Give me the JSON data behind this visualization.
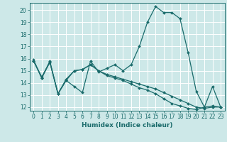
{
  "title": "",
  "xlabel": "Humidex (Indice chaleur)",
  "background_color": "#cde8e8",
  "grid_color": "#ffffff",
  "line_color": "#1a6b6b",
  "xlim": [
    -0.5,
    23.5
  ],
  "ylim": [
    11.7,
    20.6
  ],
  "yticks": [
    12,
    13,
    14,
    15,
    16,
    17,
    18,
    19,
    20
  ],
  "xticks": [
    0,
    1,
    2,
    3,
    4,
    5,
    6,
    7,
    8,
    9,
    10,
    11,
    12,
    13,
    14,
    15,
    16,
    17,
    18,
    19,
    20,
    21,
    22,
    23
  ],
  "series1": [
    15.9,
    14.4,
    15.8,
    13.1,
    14.2,
    13.7,
    13.2,
    15.8,
    14.9,
    15.2,
    15.5,
    15.0,
    15.5,
    17.0,
    19.0,
    20.3,
    19.8,
    19.8,
    19.3,
    16.5,
    13.3,
    12.0,
    13.7,
    12.0
  ],
  "series2": [
    15.8,
    14.5,
    15.7,
    13.1,
    14.3,
    15.0,
    15.1,
    15.5,
    15.0,
    14.7,
    14.5,
    14.3,
    14.1,
    13.9,
    13.7,
    13.5,
    13.2,
    12.9,
    12.6,
    12.3,
    12.0,
    11.9,
    12.0,
    12.0
  ],
  "series3": [
    15.8,
    14.4,
    15.7,
    13.1,
    14.2,
    15.0,
    15.1,
    15.5,
    15.0,
    14.6,
    14.4,
    14.2,
    13.9,
    13.6,
    13.4,
    13.1,
    12.7,
    12.3,
    12.1,
    11.9,
    11.8,
    12.0,
    12.1,
    12.0
  ],
  "tick_fontsize": 5.5,
  "xlabel_fontsize": 6.5
}
